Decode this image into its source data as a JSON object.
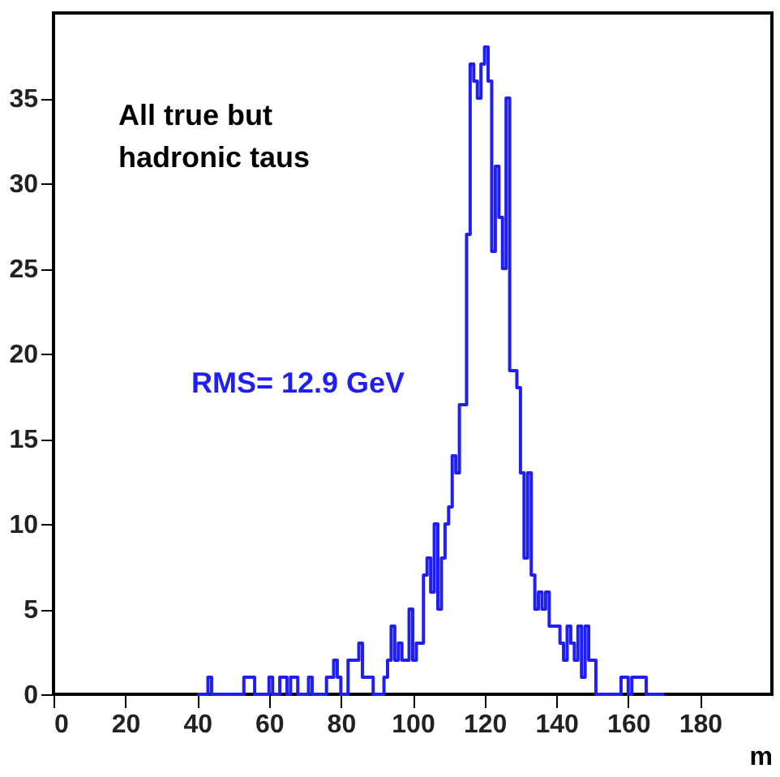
{
  "chart_data": {
    "type": "histogram",
    "bins": [
      40,
      41,
      42,
      43,
      44,
      45,
      46,
      47,
      48,
      49,
      50,
      51,
      52,
      53,
      54,
      55,
      56,
      57,
      58,
      59,
      60,
      61,
      62,
      63,
      64,
      65,
      66,
      67,
      68,
      69,
      70,
      71,
      72,
      73,
      74,
      75,
      76,
      77,
      78,
      79,
      80,
      81,
      82,
      83,
      84,
      85,
      86,
      87,
      88,
      89,
      90,
      91,
      92,
      93,
      94,
      95,
      96,
      97,
      98,
      99,
      100,
      101,
      102,
      103,
      104,
      105,
      106,
      107,
      108,
      109,
      110,
      111,
      112,
      113,
      114,
      115,
      116,
      117,
      118,
      119,
      120,
      121,
      122,
      123,
      124,
      125,
      126,
      127,
      128,
      129,
      130,
      131,
      132,
      133,
      134,
      135,
      136,
      137,
      138,
      139,
      140,
      141,
      142,
      143,
      144,
      145,
      146,
      147,
      148,
      149,
      150,
      151,
      152,
      153,
      154,
      155,
      156,
      157,
      158,
      159,
      160,
      161,
      162,
      163,
      164,
      165,
      166,
      167,
      168,
      169,
      170
    ],
    "values": [
      0,
      0,
      0,
      1,
      0,
      0,
      0,
      0,
      0,
      0,
      0,
      0,
      0,
      1,
      1,
      1,
      0,
      0,
      0,
      0,
      1,
      0,
      0,
      1,
      1,
      0,
      1,
      1,
      0,
      0,
      0,
      1,
      0,
      0,
      0,
      0,
      1,
      1,
      2,
      1,
      0,
      0,
      2,
      2,
      2,
      3,
      1,
      1,
      1,
      0,
      0,
      0,
      1,
      2,
      4,
      2,
      3,
      2,
      2,
      5,
      2,
      3,
      3,
      7,
      8,
      6,
      10,
      5,
      8,
      10,
      11,
      14,
      13,
      17,
      17,
      27,
      37,
      36,
      35,
      37,
      38,
      36,
      26,
      31,
      28,
      25,
      35,
      19,
      19,
      18,
      13,
      8,
      13,
      7,
      5,
      6,
      5,
      6,
      4,
      4,
      4,
      3,
      2,
      4,
      3,
      2,
      4,
      1,
      4,
      2,
      2,
      0,
      0,
      0,
      0,
      0,
      0,
      0,
      1,
      1,
      0,
      1,
      1,
      1,
      1,
      0,
      0,
      0,
      0,
      0
    ],
    "color": "#1f1ff5",
    "xlim": [
      0,
      200
    ],
    "xticks": [
      0,
      20,
      40,
      60,
      80,
      100,
      120,
      140,
      160,
      180
    ],
    "ylim": [
      0,
      40
    ],
    "yticks": [
      0,
      5,
      10,
      15,
      20,
      25,
      30,
      35
    ],
    "xlabel": "m",
    "grid": false,
    "annotations": [
      "All true but\nhadronic taus",
      "RMS= 12.9 GeV"
    ]
  }
}
